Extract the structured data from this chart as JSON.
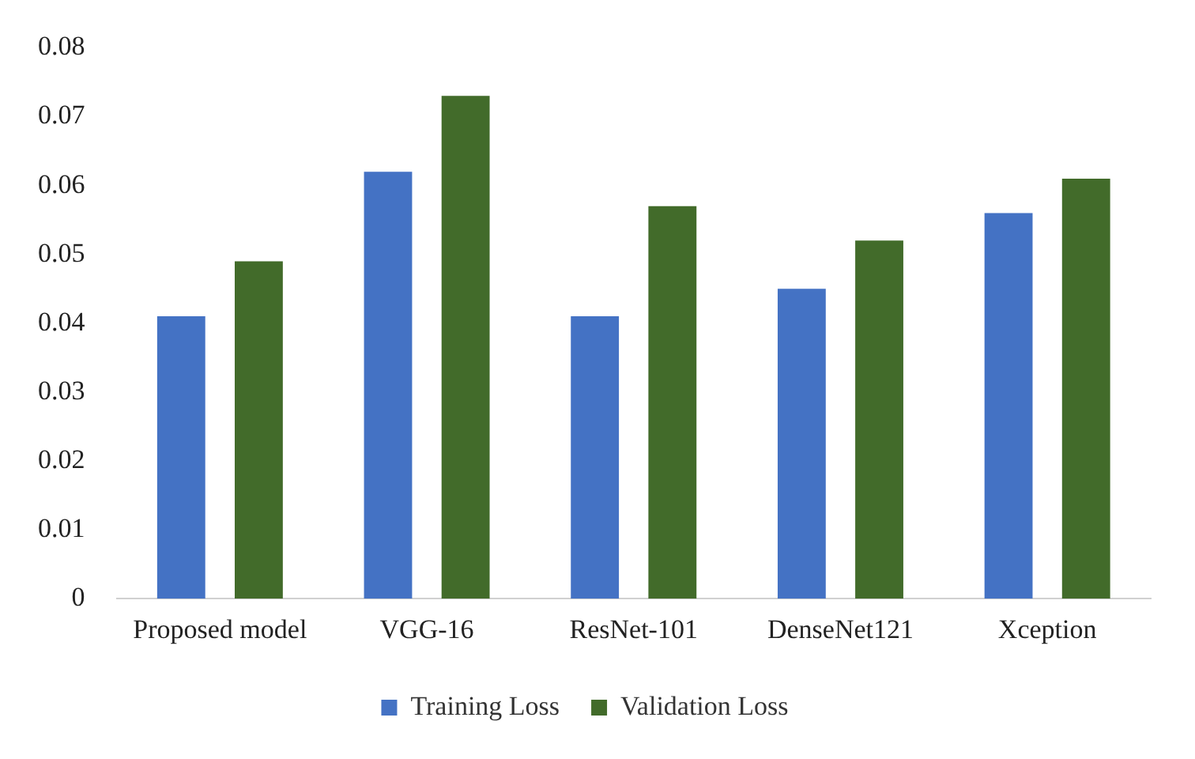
{
  "chart_data": {
    "type": "bar",
    "categories": [
      "Proposed model",
      "VGG-16",
      "ResNet-101",
      "DenseNet121",
      "Xception"
    ],
    "series": [
      {
        "name": "Training Loss",
        "color": "#4472c4",
        "values": [
          0.041,
          0.062,
          0.041,
          0.045,
          0.056
        ]
      },
      {
        "name": "Validation Loss",
        "color": "#426b2a",
        "values": [
          0.049,
          0.073,
          0.057,
          0.052,
          0.061
        ]
      }
    ],
    "ylim": [
      0,
      0.08
    ],
    "yticks": [
      0,
      0.01,
      0.02,
      0.03,
      0.04,
      0.05,
      0.06,
      0.07,
      0.08
    ],
    "grid": false,
    "legend": "bottom"
  }
}
